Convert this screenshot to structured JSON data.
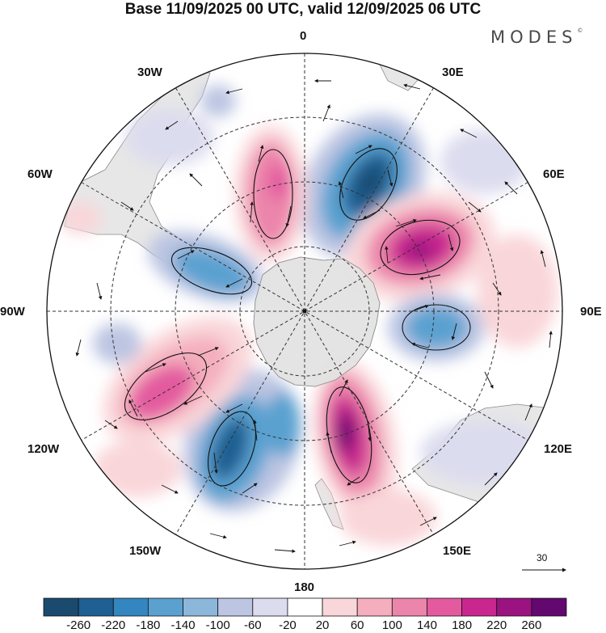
{
  "title": "Base 11/09/2025 00 UTC, valid 12/09/2025 06 UTC",
  "brand": "MODES",
  "brand_mark": "©",
  "map": {
    "projection": "south-polar-stereographic",
    "longitude_labels": {
      "top": "0",
      "top_right": "30E",
      "upper_right": "60E",
      "right": "90E",
      "lower_right": "120E",
      "bottom_right": "150E",
      "bottom": "180",
      "bottom_left": "150W",
      "lower_left": "120W",
      "left": "90W",
      "upper_left": "60W",
      "top_left": "30W"
    },
    "reference_vector": "30"
  },
  "colorbar": {
    "colors": [
      "#1a4a6e",
      "#1f5f92",
      "#3386bf",
      "#5aa1d0",
      "#8db6db",
      "#bcc5e2",
      "#dcdcef",
      "#ffffff",
      "#f9d6d9",
      "#f4aebd",
      "#ec85ab",
      "#e35a9f",
      "#c9278f",
      "#9b1281",
      "#62086f"
    ],
    "ticks": [
      "-260",
      "-220",
      "-180",
      "-140",
      "-100",
      "-60",
      "-20",
      "20",
      "60",
      "100",
      "140",
      "180",
      "220",
      "260"
    ]
  },
  "anomalies": [
    {
      "id": "neg-south-atlantic",
      "sign": "negative",
      "level": "-260"
    },
    {
      "id": "pos-indian",
      "sign": "positive",
      "level": "220"
    },
    {
      "id": "neg-east-antarctic",
      "sign": "negative",
      "level": "-140"
    },
    {
      "id": "pos-tasman",
      "sign": "positive",
      "level": "260"
    },
    {
      "id": "neg-ross-sea",
      "sign": "negative",
      "level": "-220"
    },
    {
      "id": "pos-amundsen",
      "sign": "positive",
      "level": "180"
    },
    {
      "id": "neg-drake",
      "sign": "negative",
      "level": "-180"
    },
    {
      "id": "pos-weddell",
      "sign": "positive",
      "level": "140"
    }
  ]
}
